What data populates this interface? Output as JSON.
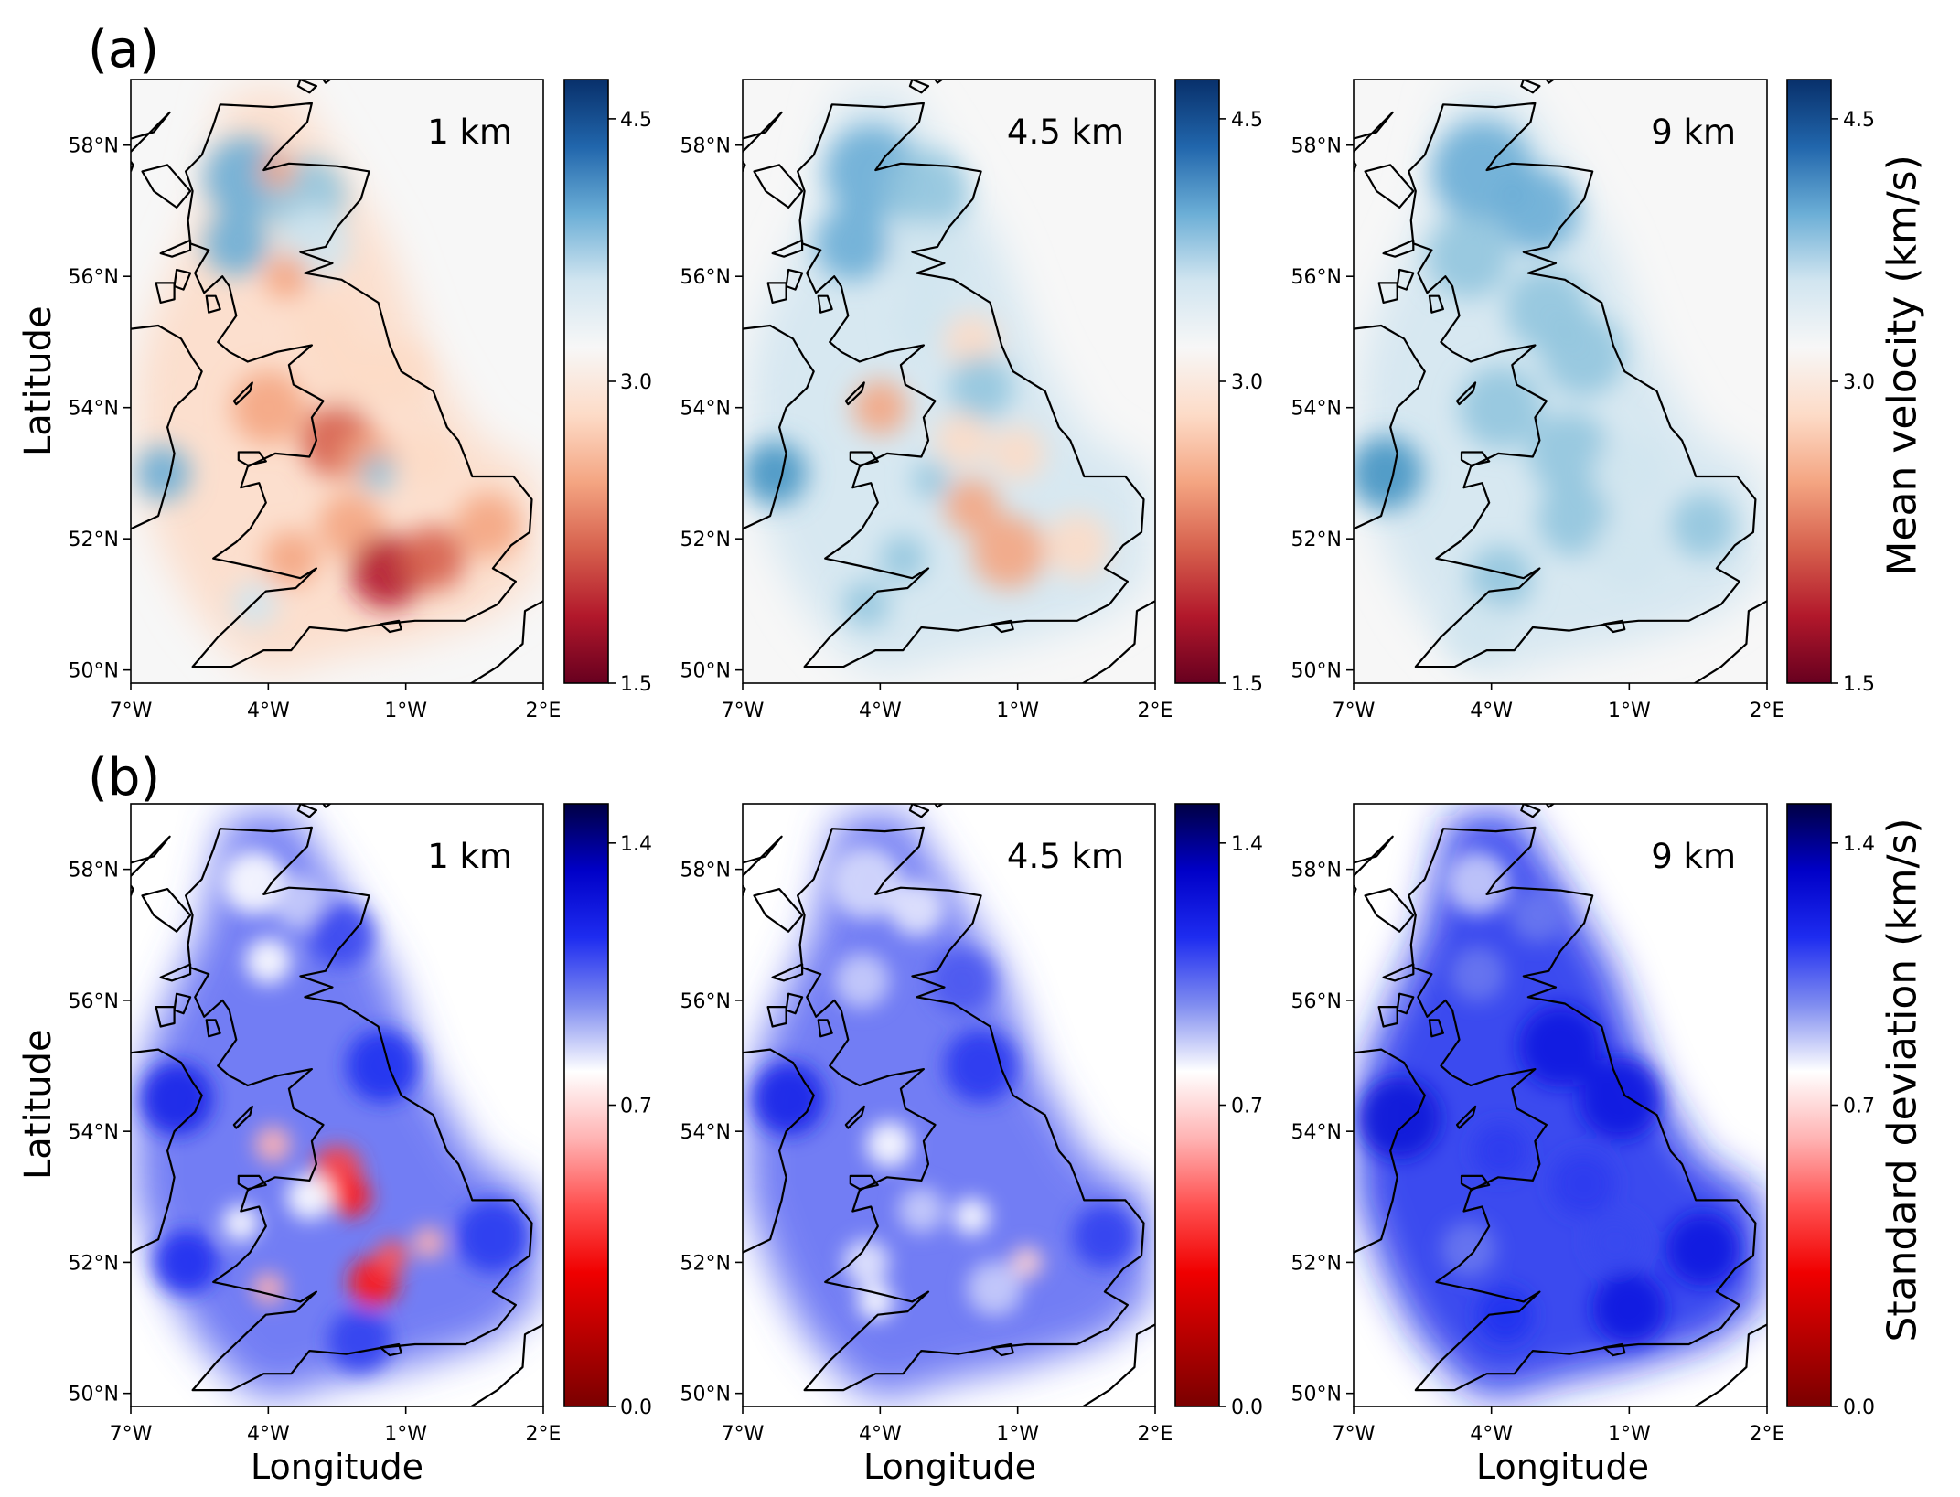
{
  "rows": [
    {
      "letter": "(a)",
      "ylabel": "Latitude",
      "xlabel": "",
      "colorbar": {
        "label": "Mean velocity (km/s)",
        "ticks": [
          "4.5",
          "3.0",
          "1.5"
        ],
        "colors": [
          "#08306b",
          "#2166ac",
          "#6baed6",
          "#d1e5f0",
          "#f7f7f7",
          "#fddbc7",
          "#f4a582",
          "#d6604d",
          "#b2182b",
          "#67001f"
        ]
      },
      "maps": [
        {
          "depth": "1 km"
        },
        {
          "depth": "4.5 km"
        },
        {
          "depth": "9 km"
        }
      ]
    },
    {
      "letter": "(b)",
      "ylabel": "Latitude",
      "xlabel": "Longitude",
      "colorbar": {
        "label": "Standard deviation (km/s)",
        "ticks": [
          "1.4",
          "0.7",
          "0.0"
        ],
        "colors": [
          "#000044",
          "#0000c8",
          "#1e2cf0",
          "#7f8cf0",
          "#ffffff",
          "#ffb3b3",
          "#ff5050",
          "#f00000",
          "#b40000",
          "#7a0000"
        ]
      },
      "maps": [
        {
          "depth": "1 km"
        },
        {
          "depth": "4.5 km"
        },
        {
          "depth": "9 km"
        }
      ]
    }
  ],
  "lat_ticks": [
    "58°N",
    "56°N",
    "54°N",
    "52°N",
    "50°N"
  ],
  "lon_ticks": [
    "7°W",
    "4°W",
    "1°W",
    "2°E"
  ],
  "extent": {
    "lon_min": -7,
    "lon_max": 2,
    "lat_min": 49.8,
    "lat_max": 59
  }
}
